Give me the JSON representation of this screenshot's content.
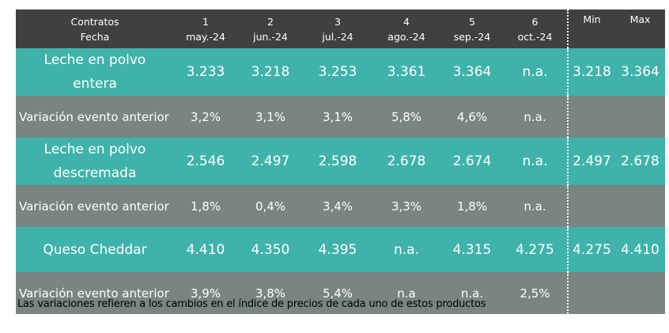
{
  "header": {
    "label_top": "Contratos",
    "label_bottom": "Fecha",
    "contracts": [
      {
        "num": "1",
        "date": "may.-24"
      },
      {
        "num": "2",
        "date": "jun.-24"
      },
      {
        "num": "3",
        "date": "jul.-24"
      },
      {
        "num": "4",
        "date": "ago.-24"
      },
      {
        "num": "5",
        "date": "sep.-24"
      },
      {
        "num": "6",
        "date": "oct.-24"
      }
    ],
    "min": "Min",
    "max": "Max"
  },
  "rows": [
    {
      "name_line1": "Leche en polvo",
      "name_line2": "entera",
      "values": [
        "3.233",
        "3.218",
        "3.253",
        "3.361",
        "3.364",
        "n.a."
      ],
      "min": "3.218",
      "max": "3.364"
    },
    {
      "name": "Variación evento anterior",
      "values": [
        "3,2%",
        "3,1%",
        "3,1%",
        "5,8%",
        "4,6%",
        "n.a."
      ]
    },
    {
      "name_line1": "Leche en polvo",
      "name_line2": "descremada",
      "values": [
        "2.546",
        "2.497",
        "2.598",
        "2.678",
        "2.674",
        "n.a."
      ],
      "min": "2.497",
      "max": "2.678"
    },
    {
      "name": "Variación evento anterior",
      "values": [
        "1,8%",
        "0,4%",
        "3,4%",
        "3,3%",
        "1,8%",
        "n.a."
      ]
    },
    {
      "name_line1": "Queso Cheddar",
      "values": [
        "4.410",
        "4.350",
        "4.395",
        "n.a.",
        "4.315",
        "4.275"
      ],
      "min": "4.275",
      "max": "4.410"
    },
    {
      "name": "Variación evento anterior",
      "values": [
        "3,9%",
        "3,8%",
        "5,4%",
        "n.a",
        "n.a.",
        "2,5%"
      ]
    }
  ],
  "footnote": "Las variaciones refieren a los cambios en el índice de precios de cada uno de estos productos",
  "colors": {
    "header": "#404040",
    "teal": "#3fb3ab",
    "gray": "#798483"
  }
}
